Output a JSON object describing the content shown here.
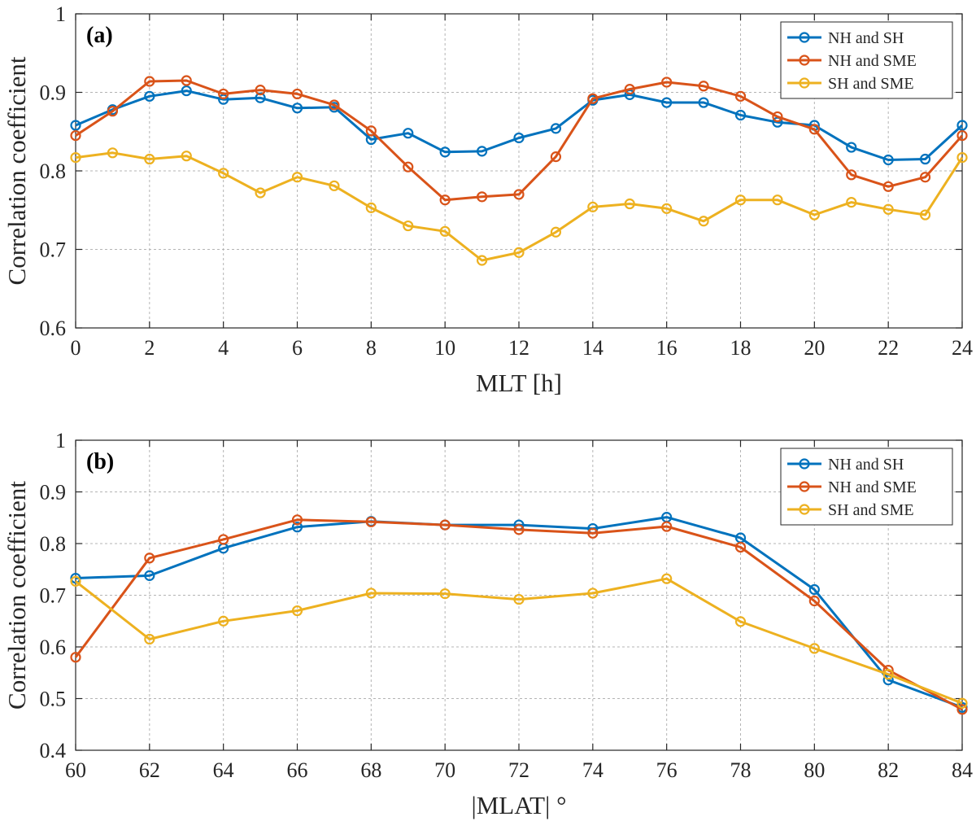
{
  "chart_data": [
    {
      "type": "line",
      "panel_label": "(a)",
      "title": "",
      "xlabel": "MLT [h]",
      "ylabel": "Correlation coefficient",
      "xlim": [
        0,
        24
      ],
      "ylim": [
        0.6,
        1
      ],
      "xticks": [
        "0",
        "2",
        "4",
        "6",
        "8",
        "10",
        "12",
        "14",
        "16",
        "18",
        "20",
        "22",
        "24"
      ],
      "yticks": [
        "0.6",
        "0.7",
        "0.8",
        "0.9",
        "1"
      ],
      "grid": true,
      "legend_position": "top-right",
      "x": [
        0,
        1,
        2,
        3,
        4,
        5,
        6,
        7,
        8,
        9,
        10,
        11,
        12,
        13,
        14,
        15,
        16,
        17,
        18,
        19,
        20,
        21,
        22,
        23,
        24
      ],
      "series": [
        {
          "name": "NH and SH",
          "color": "#0072BD",
          "values": [
            0.858,
            0.878,
            0.895,
            0.902,
            0.891,
            0.893,
            0.88,
            0.881,
            0.84,
            0.848,
            0.824,
            0.825,
            0.842,
            0.854,
            0.89,
            0.897,
            0.887,
            0.887,
            0.871,
            0.862,
            0.858,
            0.83,
            0.814,
            0.815,
            0.858
          ]
        },
        {
          "name": "NH and SME",
          "color": "#D95319",
          "values": [
            0.845,
            0.876,
            0.914,
            0.915,
            0.898,
            0.903,
            0.898,
            0.884,
            0.851,
            0.805,
            0.763,
            0.767,
            0.77,
            0.818,
            0.892,
            0.904,
            0.913,
            0.908,
            0.895,
            0.869,
            0.853,
            0.795,
            0.78,
            0.792,
            0.845
          ]
        },
        {
          "name": "SH and SME",
          "color": "#EDB120",
          "values": [
            0.817,
            0.823,
            0.815,
            0.819,
            0.797,
            0.772,
            0.792,
            0.781,
            0.753,
            0.73,
            0.723,
            0.686,
            0.696,
            0.722,
            0.754,
            0.758,
            0.752,
            0.736,
            0.763,
            0.763,
            0.744,
            0.76,
            0.751,
            0.744,
            0.817
          ]
        }
      ]
    },
    {
      "type": "line",
      "panel_label": "(b)",
      "title": "",
      "xlabel": "|MLAT| °",
      "ylabel": "Correlation coefficient",
      "xlim": [
        60,
        84
      ],
      "ylim": [
        0.4,
        1
      ],
      "xticks": [
        "60",
        "62",
        "64",
        "66",
        "68",
        "70",
        "72",
        "74",
        "76",
        "78",
        "80",
        "82",
        "84"
      ],
      "yticks": [
        "0.4",
        "0.5",
        "0.6",
        "0.7",
        "0.8",
        "0.9",
        "1"
      ],
      "grid": true,
      "legend_position": "top-right",
      "x": [
        60,
        62,
        64,
        66,
        68,
        70,
        72,
        74,
        76,
        78,
        80,
        82,
        84
      ],
      "series": [
        {
          "name": "NH and SH",
          "color": "#0072BD",
          "values": [
            0.733,
            0.738,
            0.791,
            0.832,
            0.843,
            0.836,
            0.836,
            0.829,
            0.851,
            0.811,
            0.711,
            0.536,
            0.483
          ]
        },
        {
          "name": "NH and SME",
          "color": "#D95319",
          "values": [
            0.58,
            0.772,
            0.808,
            0.846,
            0.842,
            0.836,
            0.827,
            0.82,
            0.833,
            0.793,
            0.689,
            0.555,
            0.479
          ]
        },
        {
          "name": "SH and SME",
          "color": "#EDB120",
          "values": [
            0.727,
            0.615,
            0.65,
            0.67,
            0.704,
            0.703,
            0.692,
            0.704,
            0.732,
            0.649,
            0.597,
            0.547,
            0.491
          ]
        }
      ]
    }
  ]
}
